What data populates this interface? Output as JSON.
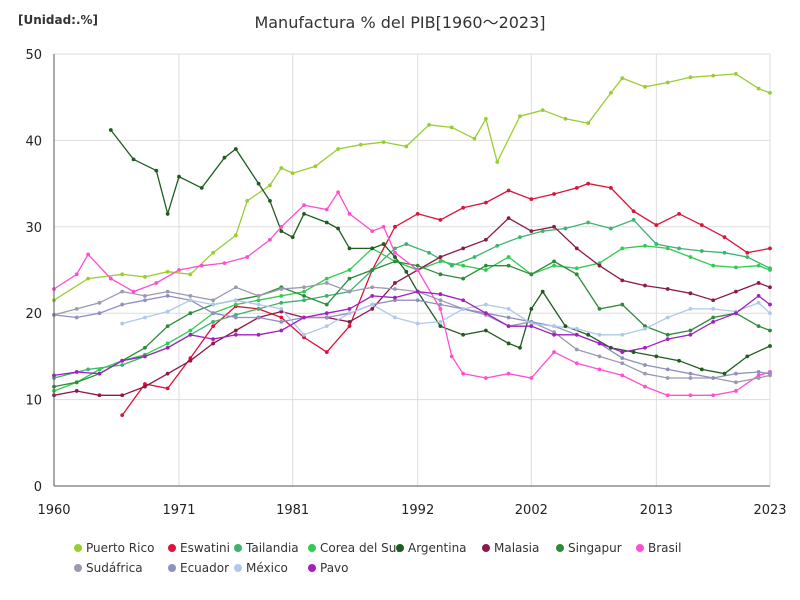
{
  "chart_data": {
    "type": "line",
    "title": "Manufactura % del PIB[1960～2023]",
    "unit_label": "[Unidad:.%]",
    "xlim": [
      1960,
      2023
    ],
    "ylim": [
      0,
      50
    ],
    "x_ticks": [
      1960,
      1971,
      1981,
      1992,
      2002,
      2013,
      2023
    ],
    "y_ticks": [
      0,
      10,
      20,
      30,
      40,
      50
    ],
    "grid": true,
    "legend_position": "bottom",
    "series": [
      {
        "name": "Puerto Rico",
        "color": "#9acd32",
        "x": [
          1960,
          1963,
          1966,
          1968,
          1970,
          1972,
          1974,
          1976,
          1977,
          1979,
          1980,
          1981,
          1983,
          1985,
          1987,
          1989,
          1991,
          1993,
          1995,
          1997,
          1998,
          1999,
          2001,
          2003,
          2005,
          2007,
          2009,
          2010,
          2012,
          2014,
          2016,
          2018,
          2020,
          2022,
          2023
        ],
        "values": [
          21.5,
          24,
          24.5,
          24.2,
          24.8,
          24.5,
          27,
          29,
          33,
          34.8,
          36.8,
          36.2,
          37,
          39,
          39.5,
          39.8,
          39.3,
          41.8,
          41.5,
          40.2,
          42.5,
          37.5,
          42.8,
          43.5,
          42.5,
          42,
          45.5,
          47.2,
          46.2,
          46.7,
          47.3,
          47.5,
          47.7,
          46,
          45.5
        ]
      },
      {
        "name": "Eswatini",
        "color": "#dc143c",
        "x": [
          1966,
          1968,
          1970,
          1972,
          1974,
          1976,
          1978,
          1980,
          1982,
          1984,
          1986,
          1988,
          1990,
          1992,
          1994,
          1996,
          1998,
          2000,
          2002,
          2004,
          2006,
          2007,
          2009,
          2011,
          2013,
          2015,
          2017,
          2019,
          2021,
          2023
        ],
        "values": [
          8.2,
          11.8,
          11.3,
          14.8,
          18.5,
          20.8,
          20.5,
          19.5,
          17.2,
          15.5,
          18.5,
          25,
          30,
          31.5,
          30.8,
          32.2,
          32.8,
          34.2,
          33.2,
          33.8,
          34.5,
          35,
          34.5,
          31.8,
          30.2,
          31.5,
          30.2,
          28.8,
          27,
          27.5
        ]
      },
      {
        "name": "Tailandia",
        "color": "#3cb371",
        "x": [
          1960,
          1963,
          1966,
          1968,
          1970,
          1972,
          1974,
          1976,
          1978,
          1980,
          1982,
          1984,
          1986,
          1988,
          1990,
          1991,
          1993,
          1995,
          1997,
          1999,
          2001,
          2003,
          2005,
          2007,
          2009,
          2011,
          2013,
          2015,
          2017,
          2019,
          2021,
          2023
        ],
        "values": [
          12.5,
          13.5,
          14,
          15,
          16,
          17.5,
          19,
          19.8,
          20.5,
          21.2,
          21.5,
          22,
          22.5,
          25,
          27.5,
          28,
          27,
          25.5,
          26.5,
          27.8,
          28.8,
          29.5,
          29.8,
          30.5,
          29.8,
          30.8,
          28,
          27.5,
          27.2,
          27,
          26.5,
          25.2
        ]
      },
      {
        "name": "Corea del Sur",
        "color": "#2ecc50",
        "x": [
          1960,
          1962,
          1964,
          1966,
          1968,
          1970,
          1972,
          1974,
          1976,
          1978,
          1980,
          1982,
          1984,
          1986,
          1988,
          1990,
          1992,
          1994,
          1996,
          1998,
          2000,
          2002,
          2004,
          2006,
          2008,
          2010,
          2012,
          2014,
          2016,
          2018,
          2020,
          2022,
          2023
        ],
        "values": [
          11,
          12,
          13.5,
          14.5,
          15.2,
          16.5,
          18,
          20,
          21,
          21.5,
          22,
          22.5,
          24,
          25,
          27.5,
          26,
          25,
          26,
          25.5,
          25,
          26.5,
          24.5,
          25.5,
          25.2,
          25.8,
          27.5,
          27.8,
          27.5,
          26.5,
          25.5,
          25.3,
          25.5,
          25
        ]
      },
      {
        "name": "Argentina",
        "color": "#1f5c1f",
        "x": [
          1965,
          1967,
          1969,
          1970,
          1971,
          1973,
          1975,
          1976,
          1978,
          1979,
          1980,
          1981,
          1982,
          1984,
          1985,
          1986,
          1988,
          1989,
          1990,
          1991,
          1992,
          1994,
          1996,
          1998,
          2000,
          2001,
          2002,
          2003,
          2005,
          2007,
          2009,
          2011,
          2013,
          2015,
          2017,
          2019,
          2021,
          2023
        ],
        "values": [
          41.2,
          37.8,
          36.5,
          31.5,
          35.8,
          34.5,
          38,
          39,
          35,
          33,
          29.5,
          28.8,
          31.5,
          30.5,
          29.8,
          27.5,
          27.5,
          28,
          26.5,
          24.8,
          22.5,
          18.5,
          17.5,
          18,
          16.5,
          16,
          20.5,
          22.5,
          18.5,
          17.5,
          16,
          15.5,
          15,
          14.5,
          13.5,
          13,
          15,
          16.2
        ]
      },
      {
        "name": "Malasia",
        "color": "#8b1a4a",
        "x": [
          1960,
          1962,
          1964,
          1966,
          1968,
          1970,
          1972,
          1974,
          1976,
          1978,
          1980,
          1982,
          1984,
          1986,
          1988,
          1990,
          1992,
          1994,
          1996,
          1998,
          2000,
          2002,
          2004,
          2006,
          2008,
          2010,
          2012,
          2014,
          2016,
          2018,
          2020,
          2022,
          2023
        ],
        "values": [
          10.5,
          11,
          10.5,
          10.5,
          11.5,
          13,
          14.5,
          16.5,
          18,
          19.5,
          20.2,
          19.5,
          19.5,
          19,
          20.5,
          23.5,
          25,
          26.5,
          27.5,
          28.5,
          31,
          29.5,
          30,
          27.5,
          25.5,
          23.8,
          23.2,
          22.8,
          22.3,
          21.5,
          22.5,
          23.5,
          23
        ]
      },
      {
        "name": "Singapur",
        "color": "#2e8b3a",
        "x": [
          1960,
          1962,
          1964,
          1966,
          1968,
          1970,
          1972,
          1974,
          1976,
          1978,
          1980,
          1982,
          1984,
          1986,
          1988,
          1990,
          1992,
          1994,
          1996,
          1998,
          2000,
          2002,
          2004,
          2006,
          2008,
          2010,
          2012,
          2014,
          2016,
          2018,
          2020,
          2022,
          2023
        ],
        "values": [
          11.5,
          12,
          13,
          14.5,
          16,
          18.5,
          20,
          21,
          21.5,
          22,
          23,
          22,
          21,
          24,
          25,
          26,
          25.5,
          24.5,
          24,
          25.5,
          25.5,
          24.5,
          26,
          24.5,
          20.5,
          21,
          18.5,
          17.5,
          18,
          19.5,
          20,
          18.5,
          18
        ]
      },
      {
        "name": "Brasil",
        "color": "#ff4fd1",
        "x": [
          1960,
          1962,
          1963,
          1965,
          1967,
          1969,
          1971,
          1973,
          1975,
          1977,
          1979,
          1980,
          1982,
          1984,
          1985,
          1986,
          1988,
          1989,
          1990,
          1992,
          1994,
          1995,
          1996,
          1998,
          2000,
          2002,
          2004,
          2006,
          2008,
          2010,
          2012,
          2014,
          2016,
          2018,
          2020,
          2022,
          2023
        ],
        "values": [
          22.8,
          24.5,
          26.8,
          24,
          22.5,
          23.5,
          25,
          25.5,
          25.8,
          26.5,
          28.5,
          30,
          32.5,
          32,
          34,
          31.5,
          29.5,
          30,
          27,
          25,
          20.5,
          15,
          13,
          12.5,
          13,
          12.5,
          15.5,
          14.2,
          13.5,
          12.8,
          11.5,
          10.5,
          10.5,
          10.5,
          11,
          12.8,
          13.2
        ]
      },
      {
        "name": "Sudáfrica",
        "color": "#9a9ab0",
        "x": [
          1960,
          1962,
          1964,
          1966,
          1968,
          1970,
          1972,
          1974,
          1976,
          1978,
          1980,
          1982,
          1984,
          1986,
          1988,
          1990,
          1992,
          1994,
          1996,
          1998,
          2000,
          2002,
          2004,
          2006,
          2008,
          2010,
          2012,
          2014,
          2016,
          2018,
          2020,
          2022,
          2023
        ],
        "values": [
          19.8,
          20.5,
          21.2,
          22.5,
          22,
          22.5,
          22,
          21.5,
          23,
          22,
          22.8,
          23,
          23.5,
          22.5,
          23,
          22.8,
          22.5,
          21.5,
          20.5,
          19.8,
          18.5,
          19,
          17.8,
          15.8,
          15,
          14.2,
          13,
          12.5,
          12.5,
          12.5,
          12,
          12.5,
          12.8
        ]
      },
      {
        "name": "Ecuador",
        "color": "#9090c0",
        "x": [
          1960,
          1962,
          1964,
          1966,
          1968,
          1970,
          1972,
          1974,
          1976,
          1978,
          1980,
          1982,
          1984,
          1986,
          1988,
          1990,
          1992,
          1994,
          1996,
          1998,
          2000,
          2002,
          2004,
          2006,
          2008,
          2010,
          2012,
          2014,
          2016,
          2018,
          2020,
          2022,
          2023
        ],
        "values": [
          19.8,
          19.5,
          20,
          21,
          21.5,
          22,
          21.5,
          20,
          19.5,
          19.5,
          19,
          19.5,
          19.5,
          20,
          21,
          21.5,
          21.5,
          21,
          20.5,
          20,
          19.5,
          19,
          18.5,
          17.5,
          16.5,
          14.8,
          14,
          13.5,
          13,
          12.5,
          13,
          13.2,
          13
        ]
      },
      {
        "name": "México",
        "color": "#b0c8ec",
        "x": [
          1966,
          1968,
          1970,
          1972,
          1974,
          1976,
          1978,
          1980,
          1982,
          1984,
          1986,
          1988,
          1990,
          1992,
          1994,
          1996,
          1998,
          2000,
          2002,
          2004,
          2006,
          2008,
          2010,
          2012,
          2014,
          2016,
          2018,
          2020,
          2022,
          2023
        ],
        "values": [
          18.8,
          19.5,
          20.2,
          21.5,
          21,
          21.5,
          21,
          20.5,
          17.5,
          18.5,
          20,
          21,
          19.5,
          18.8,
          19,
          20.5,
          21,
          20.5,
          18.8,
          18.5,
          18.2,
          17.5,
          17.5,
          18.2,
          19.5,
          20.5,
          20.5,
          20.2,
          21.2,
          20
        ]
      },
      {
        "name": "Pavo",
        "color": "#a020c0",
        "x": [
          1960,
          1962,
          1964,
          1966,
          1968,
          1970,
          1972,
          1974,
          1976,
          1978,
          1980,
          1982,
          1984,
          1986,
          1988,
          1990,
          1992,
          1994,
          1996,
          1998,
          2000,
          2002,
          2004,
          2006,
          2008,
          2010,
          2012,
          2014,
          2016,
          2018,
          2020,
          2022,
          2023
        ],
        "values": [
          12.8,
          13.2,
          13,
          14.5,
          15,
          16,
          17.5,
          17,
          17.5,
          17.5,
          18,
          19.5,
          20,
          20.5,
          22,
          21.8,
          22.5,
          22.2,
          21.5,
          20,
          18.5,
          18.5,
          17.5,
          17.5,
          16.5,
          15.5,
          16,
          17,
          17.5,
          19,
          20,
          22,
          21
        ]
      }
    ]
  }
}
